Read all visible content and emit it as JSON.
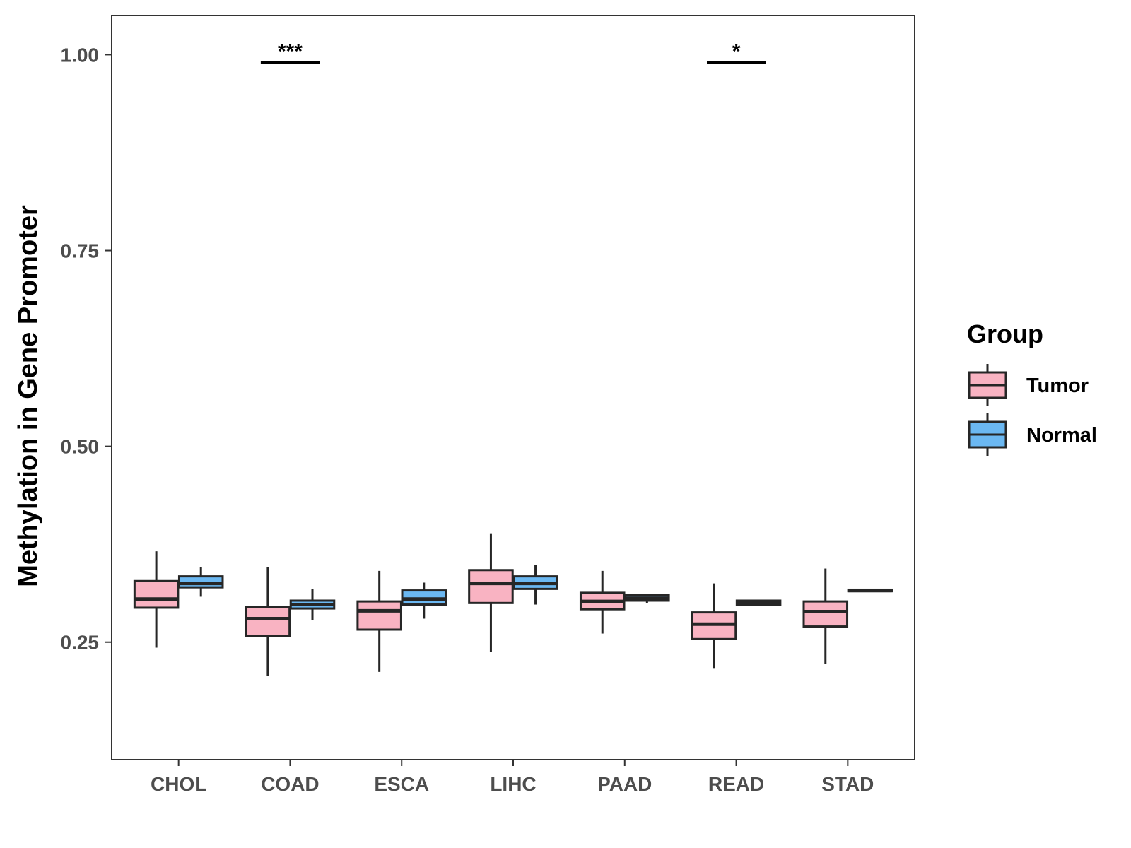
{
  "chart_data": {
    "type": "boxplot",
    "title": "",
    "xlabel": "",
    "ylabel": "Methylation in Gene Promoter",
    "ylim": [
      0.1,
      1.05
    ],
    "yticks": [
      0.25,
      0.5,
      0.75,
      1.0
    ],
    "ytick_labels": [
      "0.25",
      "0.50",
      "0.75",
      "1.00"
    ],
    "categories": [
      "CHOL",
      "COAD",
      "ESCA",
      "LIHC",
      "PAAD",
      "READ",
      "STAD"
    ],
    "legend": {
      "title": "Group",
      "position": "right",
      "entries": [
        {
          "label": "Tumor",
          "color": "#f9b3c2"
        },
        {
          "label": "Normal",
          "color": "#6bb8f2"
        }
      ]
    },
    "series": [
      {
        "name": "Tumor",
        "color": "#f9b3c2",
        "boxes": [
          {
            "category": "CHOL",
            "min": 0.243,
            "q1": 0.294,
            "median": 0.305,
            "q3": 0.328,
            "max": 0.366
          },
          {
            "category": "COAD",
            "min": 0.207,
            "q1": 0.258,
            "median": 0.28,
            "q3": 0.295,
            "max": 0.346
          },
          {
            "category": "ESCA",
            "min": 0.212,
            "q1": 0.266,
            "median": 0.29,
            "q3": 0.302,
            "max": 0.341
          },
          {
            "category": "LIHC",
            "min": 0.238,
            "q1": 0.3,
            "median": 0.325,
            "q3": 0.342,
            "max": 0.389
          },
          {
            "category": "PAAD",
            "min": 0.261,
            "q1": 0.292,
            "median": 0.302,
            "q3": 0.313,
            "max": 0.341
          },
          {
            "category": "READ",
            "min": 0.217,
            "q1": 0.254,
            "median": 0.273,
            "q3": 0.288,
            "max": 0.325
          },
          {
            "category": "STAD",
            "min": 0.222,
            "q1": 0.27,
            "median": 0.289,
            "q3": 0.302,
            "max": 0.344
          }
        ]
      },
      {
        "name": "Normal",
        "color": "#6bb8f2",
        "boxes": [
          {
            "category": "CHOL",
            "min": 0.308,
            "q1": 0.32,
            "median": 0.325,
            "q3": 0.334,
            "max": 0.346
          },
          {
            "category": "COAD",
            "min": 0.278,
            "q1": 0.293,
            "median": 0.298,
            "q3": 0.303,
            "max": 0.318
          },
          {
            "category": "ESCA",
            "min": 0.28,
            "q1": 0.298,
            "median": 0.305,
            "q3": 0.316,
            "max": 0.326
          },
          {
            "category": "LIHC",
            "min": 0.298,
            "q1": 0.318,
            "median": 0.325,
            "q3": 0.334,
            "max": 0.349
          },
          {
            "category": "PAAD",
            "min": 0.3,
            "q1": 0.303,
            "median": 0.306,
            "q3": 0.31,
            "max": 0.312
          },
          {
            "category": "READ",
            "min": 0.298,
            "q1": 0.298,
            "median": 0.301,
            "q3": 0.303,
            "max": 0.303
          },
          {
            "category": "STAD",
            "min": 0.315,
            "q1": 0.315,
            "median": 0.316,
            "q3": 0.317,
            "max": 0.317
          }
        ]
      }
    ],
    "annotations": [
      {
        "category": "COAD",
        "text": "***",
        "y": 0.99
      },
      {
        "category": "READ",
        "text": "*",
        "y": 0.99
      }
    ]
  }
}
